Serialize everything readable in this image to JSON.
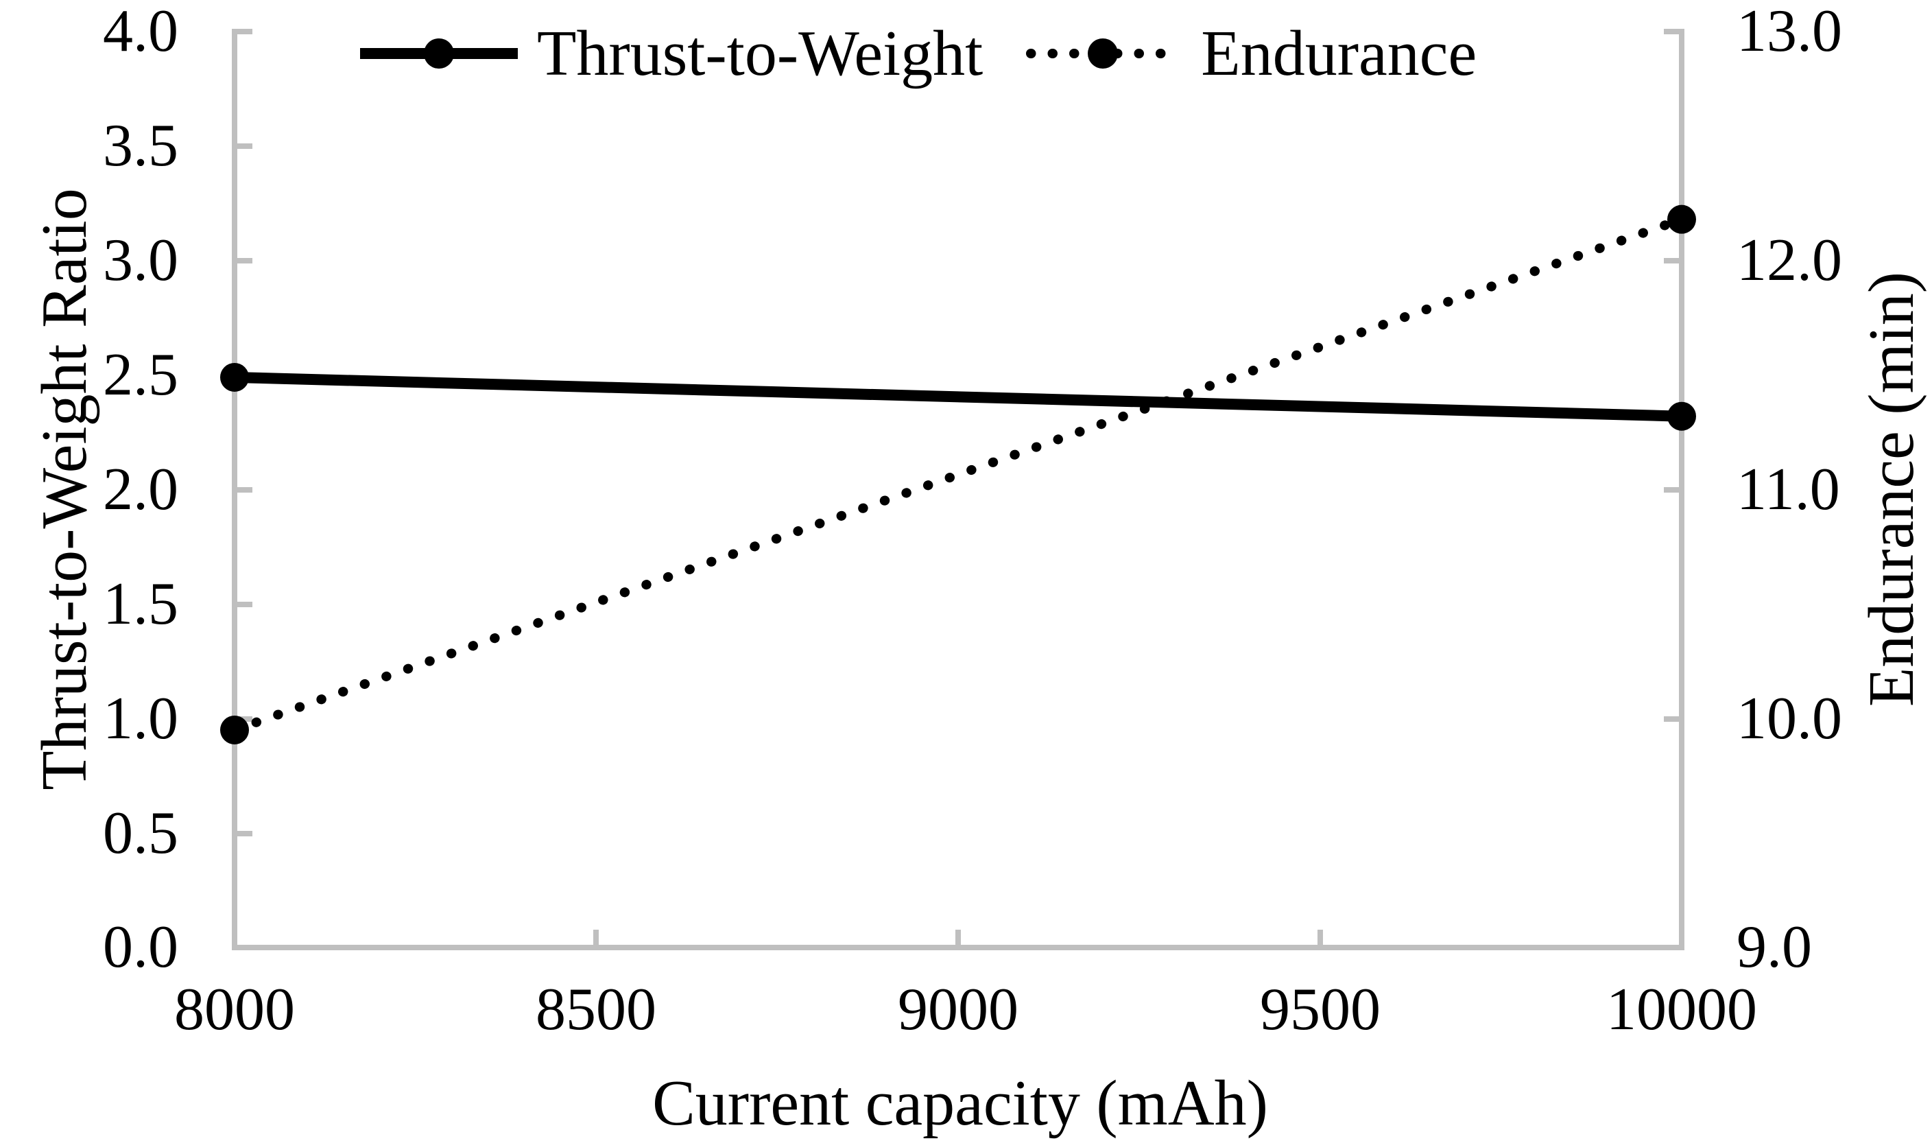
{
  "chart_data": {
    "type": "line",
    "title": "",
    "x": [
      8000,
      10000
    ],
    "x_range": [
      8000,
      10000
    ],
    "xlabel": "Current capacity (mAh)",
    "x_ticks": [
      "8000",
      "8500",
      "9000",
      "9500",
      "10000"
    ],
    "series": [
      {
        "name": "Thrust-to-Weight",
        "axis": "left",
        "style": "solid",
        "marker": "filled-circle",
        "values": [
          2.49,
          2.32
        ]
      },
      {
        "name": "Endurance",
        "axis": "right",
        "style": "dotted",
        "marker": "filled-circle",
        "values": [
          9.95,
          12.18
        ]
      }
    ],
    "left_axis": {
      "label": "Thrust-to-Weight Ratio",
      "range": [
        0.0,
        4.0
      ],
      "ticks": [
        "4.0",
        "3.5",
        "3.0",
        "2.5",
        "2.0",
        "1.5",
        "1.0",
        "0.5",
        "0.0"
      ]
    },
    "right_axis": {
      "label": "Endurance (min)",
      "range": [
        9.0,
        13.0
      ],
      "ticks": [
        "13.0",
        "12.0",
        "11.0",
        "10.0",
        "9.0"
      ]
    },
    "grid": false,
    "legend_position": "top-center"
  },
  "style": {
    "series_color": "#000000",
    "axis_color": "#BFBFBF",
    "text_color": "#000000",
    "background": "#FFFFFF"
  }
}
